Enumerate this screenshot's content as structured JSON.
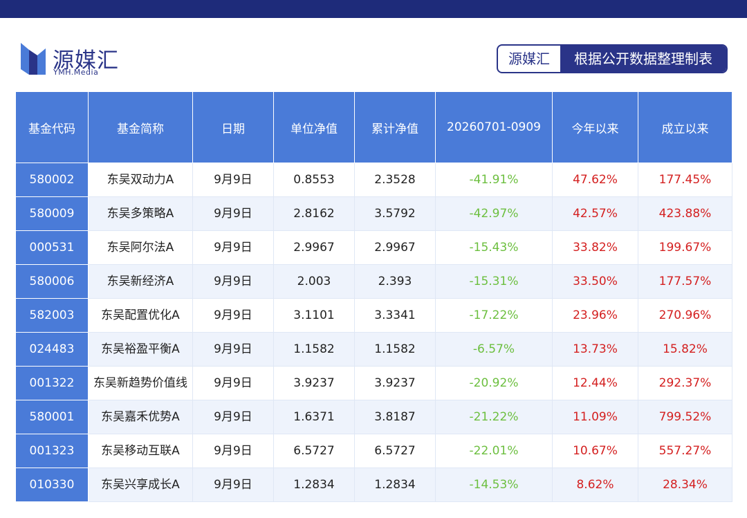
{
  "logo": {
    "name": "源媒汇",
    "sub": "YMH.Media"
  },
  "source": {
    "brand": "源媒汇",
    "desc": "根据公开数据整理制表"
  },
  "colors": {
    "header_bg": "#4a7bd8",
    "brand": "#2a3488",
    "negative": "#6cbf3f",
    "positive": "#d42020"
  },
  "table": {
    "headers": [
      "基金代码",
      "基金简称",
      "日期",
      "单位净值",
      "累计净值",
      "20260701-0909",
      "今年以来",
      "成立以来"
    ],
    "rows": [
      [
        "580002",
        "东吴双动力A",
        "9月9日",
        "0.8553",
        "2.3528",
        "-41.91%",
        "47.62%",
        "177.45%"
      ],
      [
        "580009",
        "东吴多策略A",
        "9月9日",
        "2.8162",
        "3.5792",
        "-42.97%",
        "42.57%",
        "423.88%"
      ],
      [
        "000531",
        "东吴阿尔法A",
        "9月9日",
        "2.9967",
        "2.9967",
        "-15.43%",
        "33.82%",
        "199.67%"
      ],
      [
        "580006",
        "东吴新经济A",
        "9月9日",
        "2.003",
        "2.393",
        "-15.31%",
        "33.50%",
        "177.57%"
      ],
      [
        "582003",
        "东吴配置优化A",
        "9月9日",
        "3.1101",
        "3.3341",
        "-17.22%",
        "23.96%",
        "270.96%"
      ],
      [
        "024483",
        "东吴裕盈平衡A",
        "9月9日",
        "1.1582",
        "1.1582",
        "-6.57%",
        "13.73%",
        "15.82%"
      ],
      [
        "001322",
        "东吴新趋势价值线",
        "9月9日",
        "3.9237",
        "3.9237",
        "-20.92%",
        "12.44%",
        "292.37%"
      ],
      [
        "580001",
        "东吴嘉禾优势A",
        "9月9日",
        "1.6371",
        "3.8187",
        "-21.22%",
        "11.09%",
        "799.52%"
      ],
      [
        "001323",
        "东吴移动互联A",
        "9月9日",
        "6.5727",
        "6.5727",
        "-22.01%",
        "10.67%",
        "557.27%"
      ],
      [
        "010330",
        "东吴兴享成长A",
        "9月9日",
        "1.2834",
        "1.2834",
        "-14.53%",
        "8.62%",
        "28.34%"
      ]
    ]
  }
}
